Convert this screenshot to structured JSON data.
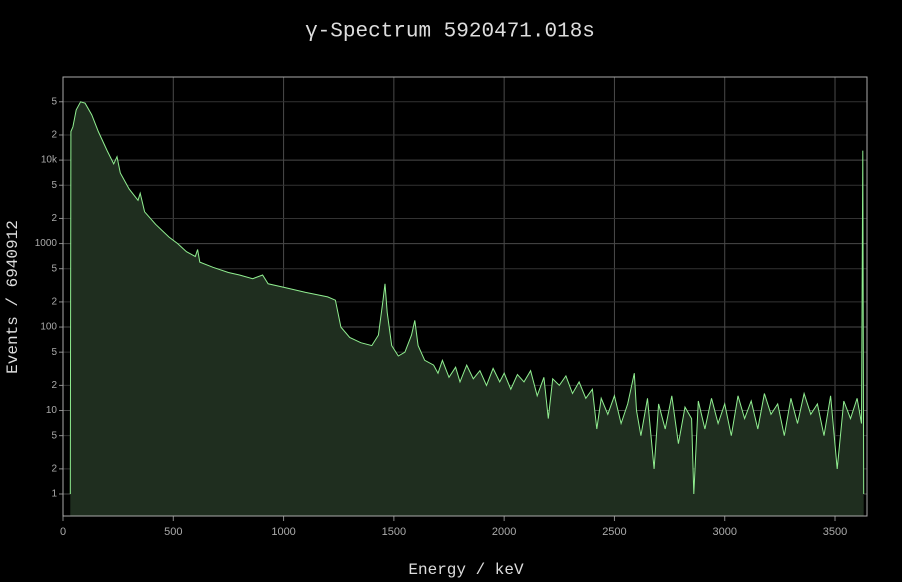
{
  "chart_data": {
    "type": "line",
    "title": "γ-Spectrum 5920471.018s",
    "x_label": "Energy / keV",
    "y_label": "Events / 6940912",
    "y_scale": "log",
    "grid": true,
    "color": "#90ee90",
    "fill_color": "#1f2e1f",
    "xlim": [
      0,
      3645
    ],
    "ylim": [
      0.545,
      99000
    ],
    "xticks": [
      0,
      500,
      1000,
      1500,
      2000,
      2500,
      3000,
      3500
    ],
    "yticks": [
      1,
      2,
      5,
      10,
      {
        "value": 20,
        "label": "2"
      },
      {
        "value": 50,
        "label": "5"
      },
      100,
      {
        "value": 200,
        "label": "2"
      },
      {
        "value": 500,
        "label": "5"
      },
      1000,
      {
        "value": 2000,
        "label": "2"
      },
      {
        "value": 5000,
        "label": "5"
      },
      {
        "value": 10000,
        "label": "10k"
      },
      {
        "value": 20000,
        "label": "2"
      },
      {
        "value": 50000,
        "label": "5"
      }
    ],
    "x": [
      33,
      36,
      45,
      60,
      80,
      100,
      130,
      160,
      200,
      230,
      245,
      260,
      300,
      340,
      350,
      370,
      420,
      480,
      520,
      560,
      600,
      610,
      620,
      680,
      750,
      800,
      860,
      905,
      930,
      1000,
      1100,
      1200,
      1235,
      1260,
      1300,
      1350,
      1400,
      1430,
      1450,
      1460,
      1470,
      1490,
      1520,
      1550,
      1580,
      1595,
      1610,
      1640,
      1680,
      1700,
      1720,
      1750,
      1780,
      1800,
      1830,
      1860,
      1890,
      1920,
      1950,
      1980,
      2000,
      2030,
      2060,
      2090,
      2120,
      2150,
      2180,
      2200,
      2220,
      2250,
      2280,
      2310,
      2340,
      2370,
      2400,
      2420,
      2440,
      2470,
      2500,
      2530,
      2560,
      2590,
      2600,
      2620,
      2650,
      2680,
      2700,
      2730,
      2760,
      2790,
      2820,
      2850,
      2860,
      2880,
      2910,
      2940,
      2970,
      3000,
      3030,
      3060,
      3090,
      3120,
      3150,
      3180,
      3210,
      3240,
      3270,
      3300,
      3330,
      3360,
      3390,
      3420,
      3450,
      3480,
      3510,
      3540,
      3570,
      3600,
      3620,
      3626,
      3630
    ],
    "values": [
      1,
      22000,
      25000,
      40000,
      50000,
      48000,
      35000,
      22000,
      13000,
      9000,
      11000,
      7000,
      4500,
      3300,
      4000,
      2400,
      1700,
      1200,
      1000,
      800,
      700,
      850,
      600,
      520,
      450,
      420,
      380,
      420,
      330,
      300,
      260,
      230,
      210,
      100,
      75,
      65,
      60,
      80,
      200,
      330,
      150,
      60,
      45,
      50,
      80,
      120,
      60,
      40,
      35,
      28,
      40,
      25,
      33,
      22,
      35,
      24,
      30,
      20,
      32,
      22,
      28,
      18,
      27,
      22,
      30,
      15,
      25,
      8,
      24,
      20,
      26,
      16,
      22,
      14,
      18,
      6,
      14,
      9,
      15,
      7,
      12,
      28,
      10,
      5,
      14,
      2,
      12,
      6,
      15,
      4,
      11,
      8,
      1,
      13,
      6,
      14,
      7,
      12,
      5,
      15,
      8,
      13,
      6,
      16,
      9,
      12,
      5,
      14,
      7,
      16,
      9,
      12,
      5,
      15,
      2,
      13,
      8,
      14,
      7,
      13000,
      1
    ]
  }
}
